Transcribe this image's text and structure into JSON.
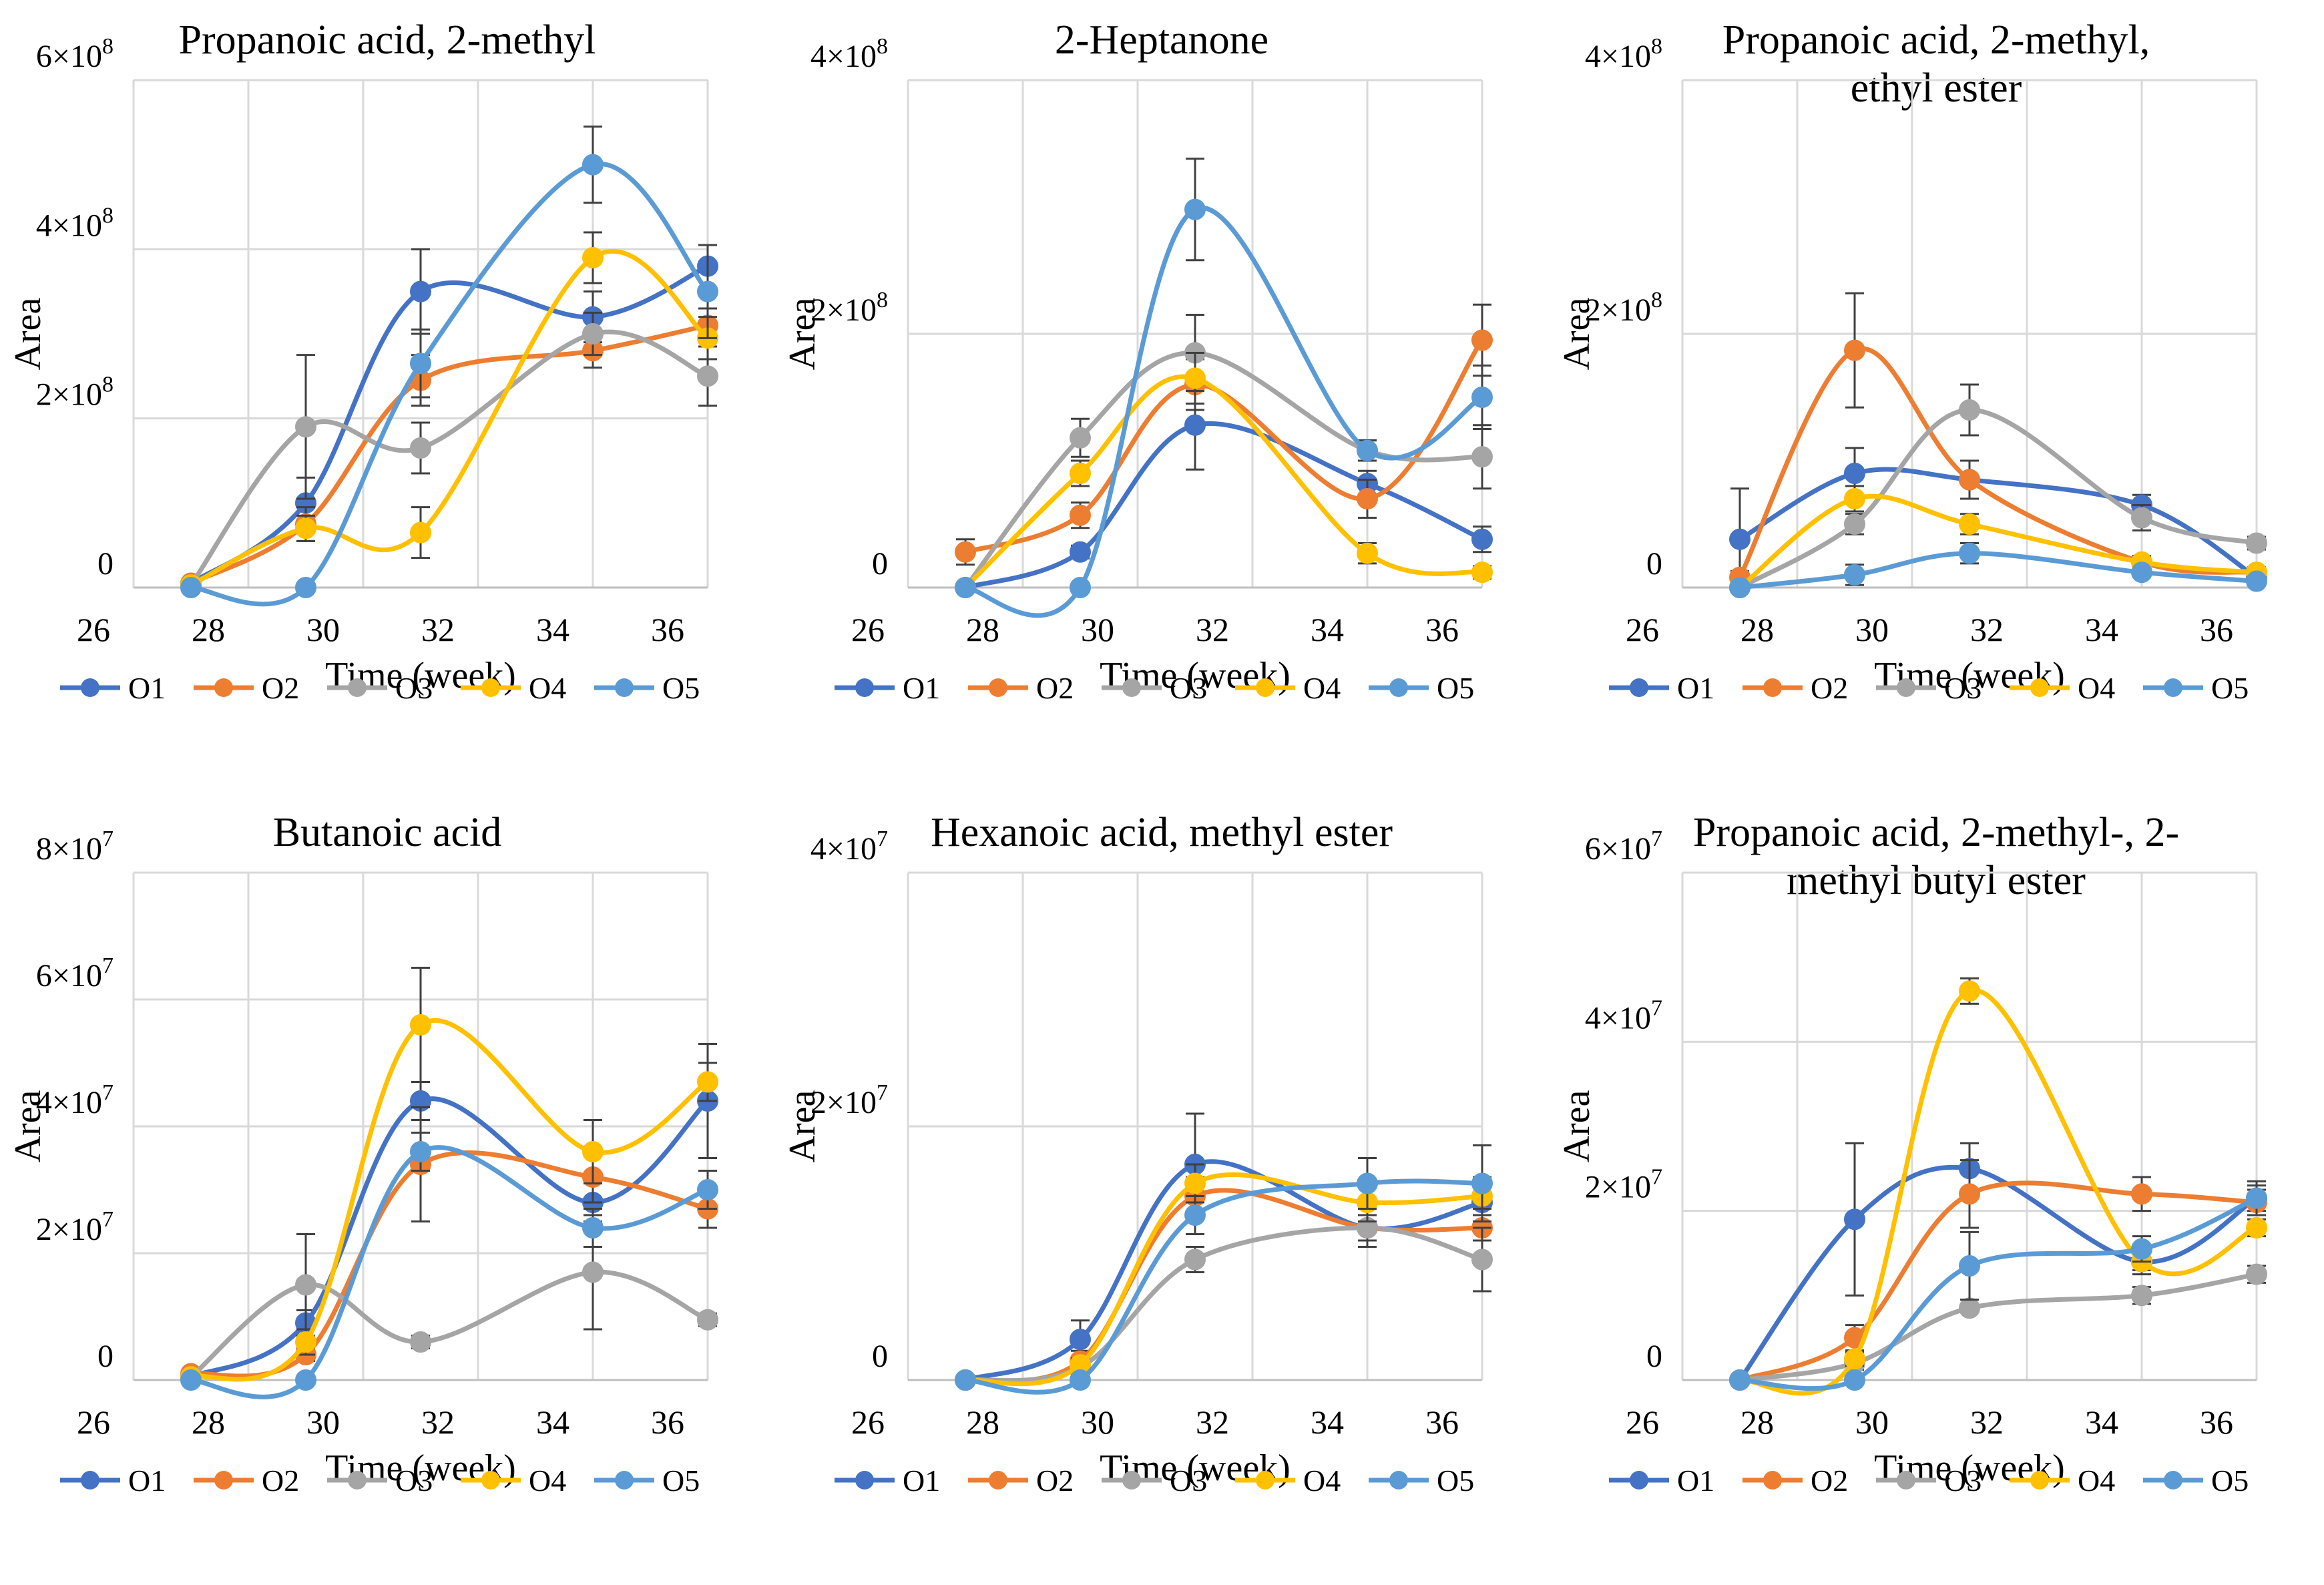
{
  "colors": {
    "O1": "#4472C4",
    "O2": "#ED7D31",
    "O3": "#A5A5A5",
    "O4": "#FFC000",
    "O5": "#5B9BD5",
    "grid": "#D9D9D9",
    "axis": "#BFBFBF",
    "text": "#000000"
  },
  "chart_data": [
    {
      "type": "line",
      "title": "Propanoic acid, 2-methyl",
      "xlabel": "Time (week)",
      "ylabel": "Area",
      "xlim": [
        26,
        36
      ],
      "ylim": [
        0,
        600000000
      ],
      "x_ticks": [
        26,
        28,
        30,
        32,
        34,
        36
      ],
      "y_ticks": [
        0,
        200000000,
        400000000,
        600000000
      ],
      "y_tick_labels": [
        {
          "base": "0",
          "exp": ""
        },
        {
          "base": "2×10",
          "exp": "8"
        },
        {
          "base": "4×10",
          "exp": "8"
        },
        {
          "base": "6×10",
          "exp": "8"
        }
      ],
      "x": [
        27,
        29,
        31,
        34,
        36
      ],
      "series": [
        {
          "name": "O1",
          "values": [
            5000000,
            100000000,
            350000000,
            320000000,
            380000000
          ],
          "errors": [
            4000000,
            30000000,
            50000000,
            30000000,
            25000000
          ]
        },
        {
          "name": "O2",
          "values": [
            5000000,
            75000000,
            245000000,
            280000000,
            310000000
          ],
          "errors": [
            3000000,
            20000000,
            30000000,
            20000000,
            20000000
          ]
        },
        {
          "name": "O3",
          "values": [
            3000000,
            190000000,
            165000000,
            300000000,
            250000000
          ],
          "errors": [
            3000000,
            85000000,
            30000000,
            25000000,
            35000000
          ]
        },
        {
          "name": "O4",
          "values": [
            3000000,
            70000000,
            65000000,
            390000000,
            295000000
          ],
          "errors": [
            3000000,
            15000000,
            30000000,
            30000000,
            25000000
          ]
        },
        {
          "name": "O5",
          "values": [
            0,
            0,
            265000000,
            500000000,
            350000000
          ],
          "errors": [
            2000000,
            2000000,
            40000000,
            45000000,
            55000000
          ]
        }
      ],
      "legend": [
        "O1",
        "O2",
        "O3",
        "O4",
        "O5"
      ],
      "legend_position": "bottom"
    },
    {
      "type": "line",
      "title": "2-Heptanone",
      "xlabel": "Time (week)",
      "ylabel": "Area",
      "xlim": [
        26,
        36
      ],
      "ylim": [
        0,
        400000000
      ],
      "x_ticks": [
        26,
        28,
        30,
        32,
        34,
        36
      ],
      "y_ticks": [
        0,
        200000000,
        400000000
      ],
      "y_tick_labels": [
        {
          "base": "0",
          "exp": ""
        },
        {
          "base": "2×10",
          "exp": "8"
        },
        {
          "base": "4×10",
          "exp": "8"
        }
      ],
      "x": [
        27,
        29,
        31,
        34,
        36
      ],
      "series": [
        {
          "name": "O1",
          "values": [
            0,
            28000000,
            128000000,
            82000000,
            38000000
          ],
          "errors": [
            2000000,
            5000000,
            35000000,
            10000000,
            10000000
          ]
        },
        {
          "name": "O2",
          "values": [
            28000000,
            57000000,
            160000000,
            70000000,
            195000000
          ],
          "errors": [
            10000000,
            10000000,
            20000000,
            15000000,
            28000000
          ]
        },
        {
          "name": "O3",
          "values": [
            0,
            118000000,
            185000000,
            108000000,
            103000000
          ],
          "errors": [
            2000000,
            15000000,
            30000000,
            8000000,
            25000000
          ]
        },
        {
          "name": "O4",
          "values": [
            0,
            90000000,
            165000000,
            27000000,
            12000000
          ],
          "errors": [
            2000000,
            10000000,
            20000000,
            8000000,
            5000000
          ]
        },
        {
          "name": "O5",
          "values": [
            0,
            0,
            298000000,
            108000000,
            150000000
          ],
          "errors": [
            2000000,
            2000000,
            40000000,
            8000000,
            25000000
          ]
        }
      ],
      "legend": [
        "O1",
        "O2",
        "O3",
        "O4",
        "O5"
      ],
      "legend_position": "bottom"
    },
    {
      "type": "line",
      "title": "Propanoic acid, 2-methyl, ethyl ester",
      "title_lines": [
        "Propanoic acid, 2-methyl,",
        "ethyl ester"
      ],
      "xlabel": "Time (week)",
      "ylabel": "Area",
      "xlim": [
        26,
        36
      ],
      "ylim": [
        0,
        400000000
      ],
      "x_ticks": [
        26,
        28,
        30,
        32,
        34,
        36
      ],
      "y_ticks": [
        0,
        200000000,
        400000000
      ],
      "y_tick_labels": [
        {
          "base": "0",
          "exp": ""
        },
        {
          "base": "2×10",
          "exp": "8"
        },
        {
          "base": "4×10",
          "exp": "8"
        }
      ],
      "x": [
        27,
        29,
        31,
        34,
        36
      ],
      "series": [
        {
          "name": "O1",
          "values": [
            38000000,
            90000000,
            85000000,
            65000000,
            8000000
          ],
          "errors": [
            40000000,
            20000000,
            15000000,
            8000000,
            3000000
          ]
        },
        {
          "name": "O2",
          "values": [
            8000000,
            187000000,
            85000000,
            20000000,
            12000000
          ],
          "errors": [
            5000000,
            45000000,
            15000000,
            5000000,
            4000000
          ]
        },
        {
          "name": "O3",
          "values": [
            0,
            50000000,
            140000000,
            55000000,
            35000000
          ],
          "errors": [
            2000000,
            8000000,
            20000000,
            10000000,
            5000000
          ]
        },
        {
          "name": "O4",
          "values": [
            0,
            70000000,
            50000000,
            20000000,
            12000000
          ],
          "errors": [
            2000000,
            10000000,
            8000000,
            5000000,
            3000000
          ]
        },
        {
          "name": "O5",
          "values": [
            0,
            10000000,
            27000000,
            12000000,
            5000000
          ],
          "errors": [
            2000000,
            8000000,
            8000000,
            3000000,
            2000000
          ]
        }
      ],
      "legend": [
        "O1",
        "O2",
        "O3",
        "O4",
        "O5"
      ],
      "legend_position": "bottom"
    },
    {
      "type": "line",
      "title": "Butanoic acid",
      "xlabel": "Time (week)",
      "ylabel": "Area",
      "xlim": [
        26,
        36
      ],
      "ylim": [
        0,
        80000000
      ],
      "x_ticks": [
        26,
        28,
        30,
        32,
        34,
        36
      ],
      "y_ticks": [
        0,
        20000000,
        40000000,
        60000000,
        80000000
      ],
      "y_tick_labels": [
        {
          "base": "0",
          "exp": ""
        },
        {
          "base": "2×10",
          "exp": "7"
        },
        {
          "base": "4×10",
          "exp": "7"
        },
        {
          "base": "6×10",
          "exp": "7"
        },
        {
          "base": "8×10",
          "exp": "7"
        }
      ],
      "x": [
        27,
        29,
        31,
        34,
        36
      ],
      "series": [
        {
          "name": "O1",
          "values": [
            500000,
            9000000,
            44000000,
            28000000,
            44000000
          ],
          "errors": [
            300000,
            2000000,
            3000000,
            3000000,
            9000000
          ]
        },
        {
          "name": "O2",
          "values": [
            1000000,
            4000000,
            34000000,
            32000000,
            27000000
          ],
          "errors": [
            500000,
            1000000,
            9000000,
            4000000,
            3000000
          ]
        },
        {
          "name": "O3",
          "values": [
            500000,
            15000000,
            6000000,
            17000000,
            9500000
          ],
          "errors": [
            300000,
            8000000,
            1000000,
            9000000,
            1000000
          ]
        },
        {
          "name": "O4",
          "values": [
            500000,
            6000000,
            56000000,
            36000000,
            47000000
          ],
          "errors": [
            300000,
            2000000,
            9000000,
            5000000,
            3000000
          ]
        },
        {
          "name": "O5",
          "values": [
            0,
            0,
            36000000,
            24000000,
            30000000
          ],
          "errors": [
            300000,
            300000,
            3000000,
            3000000,
            3000000
          ]
        }
      ],
      "legend": [
        "O1",
        "O2",
        "O3",
        "O4",
        "O5"
      ],
      "legend_position": "bottom"
    },
    {
      "type": "line",
      "title": "Hexanoic acid, methyl ester",
      "xlabel": "Time (week)",
      "ylabel": "Area",
      "xlim": [
        26,
        36
      ],
      "ylim": [
        0,
        40000000
      ],
      "x_ticks": [
        26,
        28,
        30,
        32,
        34,
        36
      ],
      "y_ticks": [
        0,
        20000000,
        40000000
      ],
      "y_tick_labels": [
        {
          "base": "0",
          "exp": ""
        },
        {
          "base": "2×10",
          "exp": "7"
        },
        {
          "base": "4×10",
          "exp": "7"
        }
      ],
      "x": [
        27,
        29,
        31,
        34,
        36
      ],
      "series": [
        {
          "name": "O1",
          "values": [
            0,
            3200000,
            17000000,
            12000000,
            14000000
          ],
          "errors": [
            200000,
            1500000,
            4000000,
            1500000,
            2000000
          ]
        },
        {
          "name": "O2",
          "values": [
            0,
            1500000,
            14500000,
            12000000,
            12000000
          ],
          "errors": [
            200000,
            800000,
            1500000,
            1000000,
            1000000
          ]
        },
        {
          "name": "O3",
          "values": [
            0,
            1000000,
            9500000,
            12000000,
            9500000
          ],
          "errors": [
            200000,
            500000,
            1000000,
            1000000,
            2500000
          ]
        },
        {
          "name": "O4",
          "values": [
            0,
            1200000,
            15500000,
            14000000,
            14500000
          ],
          "errors": [
            200000,
            500000,
            1500000,
            1500000,
            1000000
          ]
        },
        {
          "name": "O5",
          "values": [
            0,
            0,
            13000000,
            15500000,
            15500000
          ],
          "errors": [
            200000,
            200000,
            1500000,
            2000000,
            3000000
          ]
        }
      ],
      "legend": [
        "O1",
        "O2",
        "O3",
        "O4",
        "O5"
      ],
      "legend_position": "bottom"
    },
    {
      "type": "line",
      "title": "Propanoic acid, 2-methyl-, 2-methyl butyl ester",
      "title_lines": [
        "Propanoic acid, 2-methyl-, 2-",
        "methyl butyl ester"
      ],
      "xlabel": "Time (week)",
      "ylabel": "Area",
      "xlim": [
        26,
        36
      ],
      "ylim": [
        0,
        60000000
      ],
      "x_ticks": [
        26,
        28,
        30,
        32,
        34,
        36
      ],
      "y_ticks": [
        0,
        20000000,
        40000000,
        60000000
      ],
      "y_tick_labels": [
        {
          "base": "0",
          "exp": ""
        },
        {
          "base": "2×10",
          "exp": "7"
        },
        {
          "base": "4×10",
          "exp": "7"
        },
        {
          "base": "6×10",
          "exp": "7"
        }
      ],
      "x": [
        27,
        29,
        31,
        34,
        36
      ],
      "series": [
        {
          "name": "O1",
          "values": [
            0,
            19000000,
            25000000,
            14000000,
            21500000
          ],
          "errors": [
            200000,
            9000000,
            3000000,
            1000000,
            1500000
          ]
        },
        {
          "name": "O2",
          "values": [
            0,
            5000000,
            22000000,
            22000000,
            21000000
          ],
          "errors": [
            200000,
            1500000,
            4000000,
            2000000,
            1500000
          ]
        },
        {
          "name": "O3",
          "values": [
            0,
            2000000,
            8500000,
            10000000,
            12500000
          ],
          "errors": [
            200000,
            800000,
            500000,
            1000000,
            1000000
          ]
        },
        {
          "name": "O4",
          "values": [
            0,
            2500000,
            46000000,
            14000000,
            18000000
          ],
          "errors": [
            200000,
            800000,
            1500000,
            1500000,
            1000000
          ]
        },
        {
          "name": "O5",
          "values": [
            0,
            0,
            13500000,
            15500000,
            21500000
          ],
          "errors": [
            200000,
            200000,
            4000000,
            1500000,
            2000000
          ]
        }
      ],
      "legend": [
        "O1",
        "O2",
        "O3",
        "O4",
        "O5"
      ],
      "legend_position": "bottom"
    }
  ]
}
